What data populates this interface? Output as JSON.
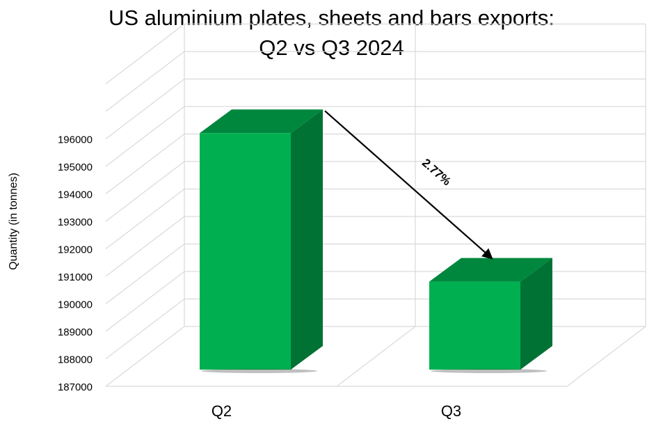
{
  "chart_data": {
    "type": "bar",
    "title_lines": [
      "US aluminium plates, sheets and bars exports:",
      "Q2 vs Q3 2024"
    ],
    "ylabel": "Quantity (in tonnes)",
    "xlabel": "",
    "categories": [
      "Q2",
      "Q3"
    ],
    "values": [
      195600,
      190200
    ],
    "ylim": [
      187000,
      196000
    ],
    "y_ticks": [
      187000,
      188000,
      189000,
      190000,
      191000,
      192000,
      193000,
      194000,
      195000,
      196000
    ],
    "grid": true,
    "three_d": true,
    "colors": {
      "front": "#00b050",
      "side": "#007234",
      "top": "#00873e",
      "grid": "#d9d9d9"
    },
    "annotation": {
      "text": "2.77%",
      "from": "Q2",
      "to": "Q3",
      "meaning": "decrease"
    }
  }
}
